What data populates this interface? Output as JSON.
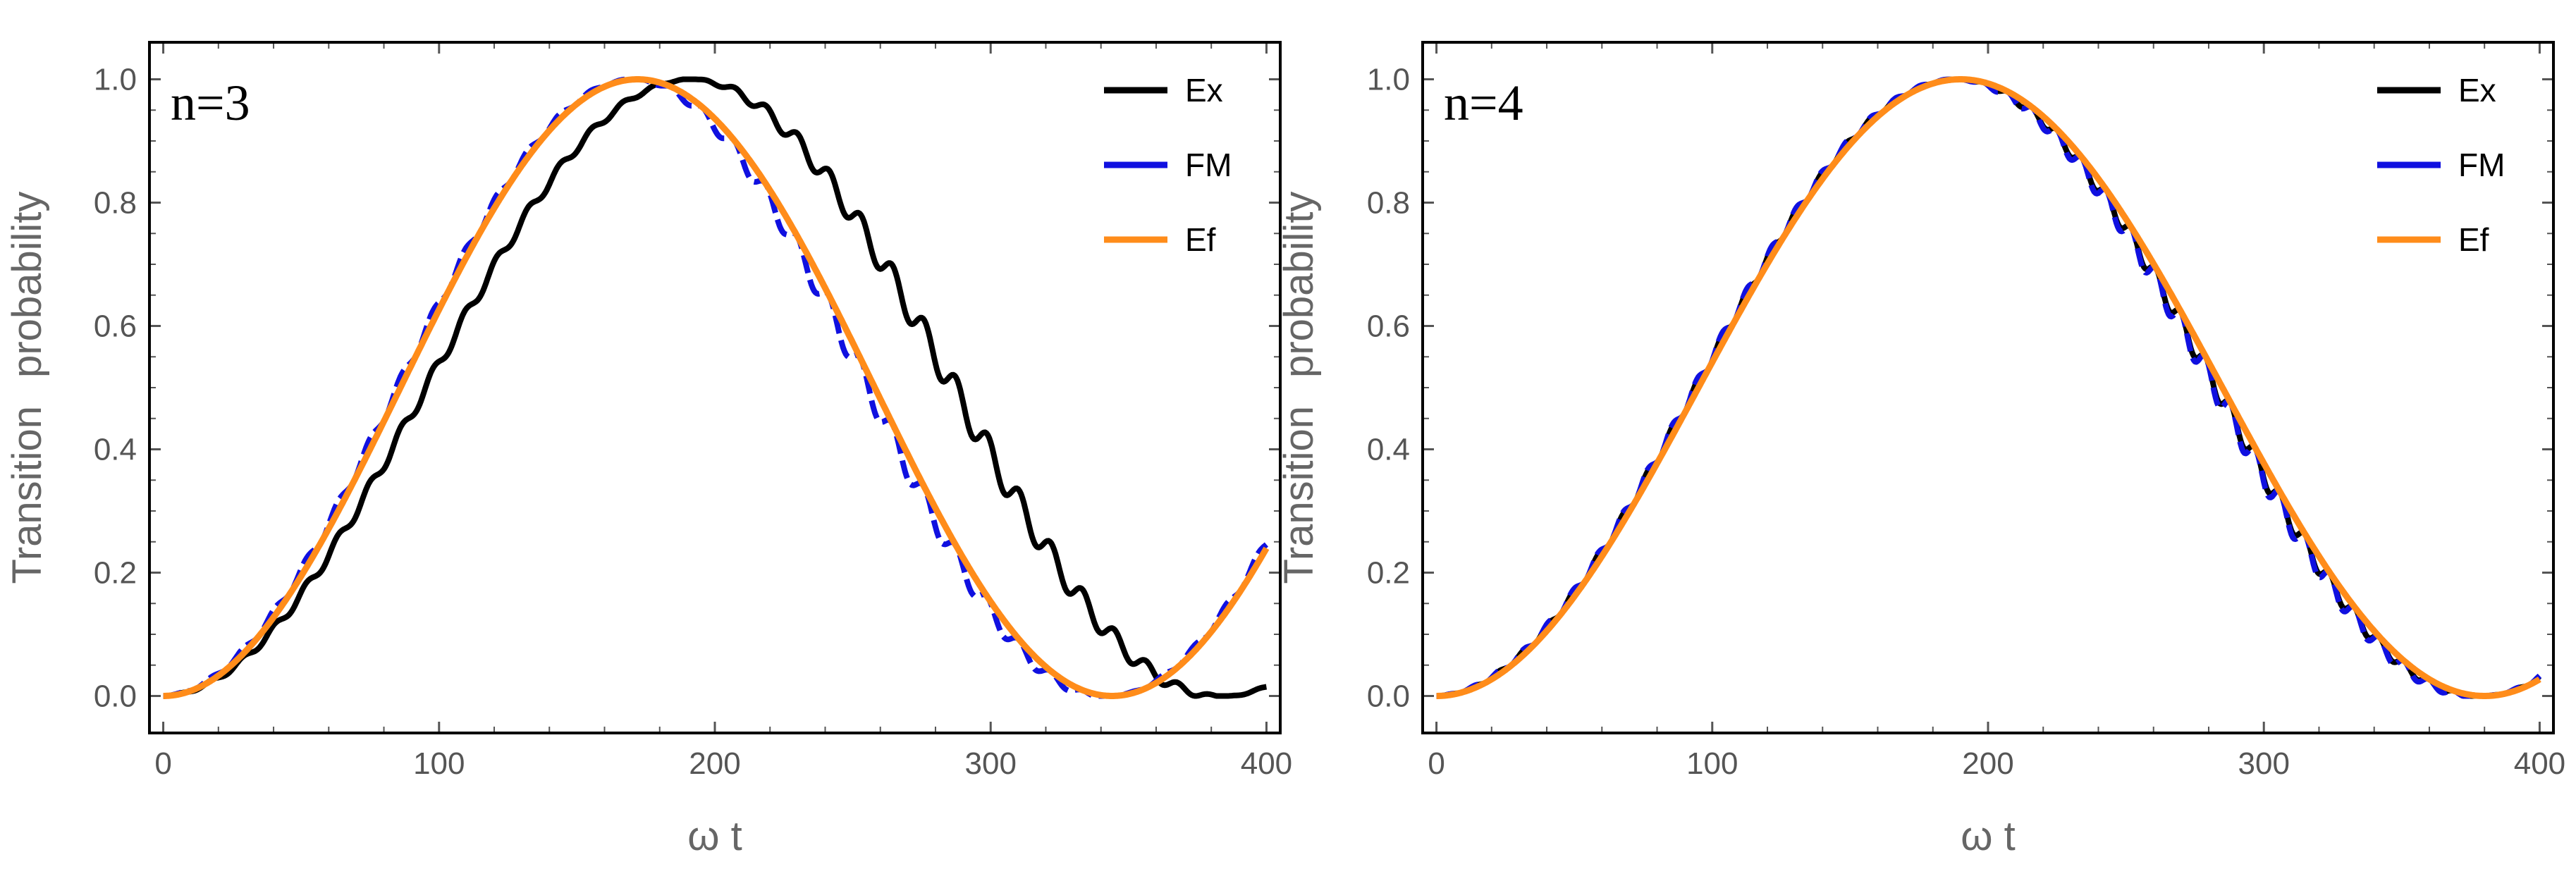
{
  "chart_data": [
    {
      "type": "line",
      "panel_label": "n=3",
      "xlabel": "ω t",
      "ylabel_parts": [
        "Transition",
        "probability"
      ],
      "xlim": [
        -5,
        405
      ],
      "ylim": [
        -0.06,
        1.06
      ],
      "x_ticks": [
        0,
        100,
        200,
        300,
        400
      ],
      "x_tick_labels": [
        "0",
        "100",
        "200",
        "300",
        "400"
      ],
      "y_ticks": [
        0.0,
        0.2,
        0.4,
        0.6,
        0.8,
        1.0
      ],
      "y_tick_labels": [
        "0.0",
        "0.2",
        "0.4",
        "0.6",
        "0.8",
        "1.0"
      ],
      "legend_position": "top-right",
      "series": [
        {
          "name": "Ex",
          "color": "#000000",
          "model": {
            "period": 386,
            "ripple_amp": 0.035,
            "ripple_period": 11.5
          }
        },
        {
          "name": "FM",
          "color": "#1010e0",
          "model": {
            "period": 344,
            "ripple_amp": 0.03,
            "ripple_period": 11.5
          }
        },
        {
          "name": "Ef",
          "color": "#ff8c1a",
          "model": {
            "period": 344,
            "ripple_amp": 0,
            "ripple_period": 0
          }
        }
      ]
    },
    {
      "type": "line",
      "panel_label": "n=4",
      "xlabel": "ω t",
      "ylabel_parts": [
        "Transition",
        "probability"
      ],
      "xlim": [
        -5,
        405
      ],
      "ylim": [
        -0.06,
        1.06
      ],
      "x_ticks": [
        0,
        100,
        200,
        300,
        400
      ],
      "x_tick_labels": [
        "0",
        "100",
        "200",
        "300",
        "400"
      ],
      "y_ticks": [
        0.0,
        0.2,
        0.4,
        0.6,
        0.8,
        1.0
      ],
      "y_tick_labels": [
        "0.0",
        "0.2",
        "0.4",
        "0.6",
        "0.8",
        "1.0"
      ],
      "legend_position": "top-right",
      "series": [
        {
          "name": "Ex",
          "color": "#000000",
          "model": {
            "period": 380,
            "ripple_amp": 0.025,
            "ripple_period": 9
          }
        },
        {
          "name": "FM",
          "color": "#1010e0",
          "model": {
            "period": 380,
            "ripple_amp": 0.03,
            "ripple_period": 9
          }
        },
        {
          "name": "Ef",
          "color": "#ff8c1a",
          "model": {
            "period": 380,
            "ripple_amp": 0,
            "ripple_period": 0
          }
        }
      ]
    }
  ]
}
